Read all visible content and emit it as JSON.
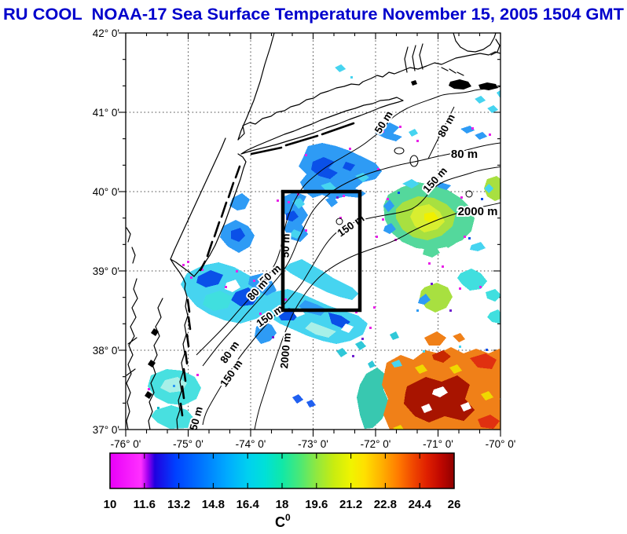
{
  "title": {
    "text": "RU COOL  NOAA-17 Sea Surface Temperature November 15, 2005 1504 GMT",
    "color": "#0000CC"
  },
  "map": {
    "x_axis_labels": [
      "-76° 0'",
      "-75° 0'",
      "-74° 0'",
      "-73° 0'",
      "-72° 0'",
      "-71° 0'",
      "-70° 0'"
    ],
    "y_axis_labels": [
      "42° 0'",
      "41° 0'",
      "40° 0'",
      "39° 0'",
      "38° 0'",
      "37° 0'"
    ],
    "contour_labels": [
      "50 m",
      "80 m",
      "80 m",
      "150 m",
      "2000 m",
      "150 m",
      "50 m",
      "50 m",
      "80 m",
      "150 m",
      "2000 m",
      "80 m",
      "150 m",
      "50 m"
    ]
  },
  "colorbar": {
    "min": 10,
    "max": 26,
    "tick_labels": [
      "10",
      "11.6",
      "13.2",
      "14.8",
      "16.4",
      "18",
      "19.6",
      "21.2",
      "22.8",
      "24.4",
      "26"
    ],
    "unit_c": "C",
    "unit_sup": "0",
    "gradient_stops": [
      [
        "0%",
        "#E800F8"
      ],
      [
        "9%",
        "#FF30FF"
      ],
      [
        "11%",
        "#A000F0"
      ],
      [
        "13%",
        "#2000E0"
      ],
      [
        "19%",
        "#0040FF"
      ],
      [
        "27%",
        "#0078FF"
      ],
      [
        "34%",
        "#00AAFF"
      ],
      [
        "40%",
        "#00D0F0"
      ],
      [
        "45%",
        "#00E0D8"
      ],
      [
        "50%",
        "#10E8A8"
      ],
      [
        "55%",
        "#48E878"
      ],
      [
        "60%",
        "#90E840"
      ],
      [
        "65%",
        "#C8EC10"
      ],
      [
        "70%",
        "#F0F400"
      ],
      [
        "74%",
        "#FFE000"
      ],
      [
        "79%",
        "#FFB000"
      ],
      [
        "84%",
        "#FF7800"
      ],
      [
        "88%",
        "#F04800"
      ],
      [
        "92%",
        "#E02000"
      ],
      [
        "96%",
        "#C00800"
      ],
      [
        "100%",
        "#900000"
      ]
    ]
  },
  "palette": {
    "magenta": "#E822E8",
    "blue_dark": "#0A50E8",
    "blue": "#2E9BF5",
    "cyan": "#46D4F0",
    "turquoise": "#40DFDF",
    "pale_cyan": "#A8F0E8",
    "teal": "#38C8B0",
    "green_teal": "#54D89C",
    "green_yellow": "#A8E040",
    "chartreuse": "#D8EE30",
    "yellow": "#F0F000",
    "orange": "#F08018",
    "red": "#E03010",
    "dark_red": "#A81400"
  }
}
